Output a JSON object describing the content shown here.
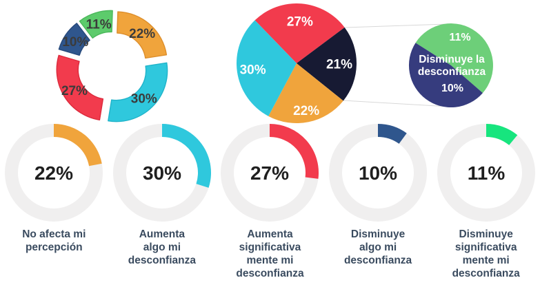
{
  "background": "#FFFFFF",
  "connector_color": "#D8D8D8",
  "chart_data": [
    {
      "id": "donut",
      "type": "pie",
      "variant": "exploded-donut",
      "legend_position": "none",
      "label_color": "#3B3B3B",
      "series": [
        {
          "category": "No afecta mi percepción",
          "value": 22,
          "label": "22%",
          "color": "#F0A43C",
          "stroke": "#DD8E2B"
        },
        {
          "category": "Aumenta algo mi desconfianza",
          "value": 30,
          "label": "30%",
          "color": "#2FC8DD",
          "stroke": "#1FB3C9"
        },
        {
          "category": "Aumenta significativamente mi desconfianza",
          "value": 27,
          "label": "27%",
          "color": "#F23B4D",
          "stroke": "#DC2A3C"
        },
        {
          "category": "Disminuye algo mi desconfianza",
          "value": 10,
          "label": "10%",
          "color": "#2F568D",
          "stroke": "#26497C"
        },
        {
          "category": "Disminuye significativamente mi desconfianza",
          "value": 11,
          "label": "11%",
          "color": "#5DCB6C",
          "stroke": "#4BB85B"
        }
      ]
    },
    {
      "id": "main-pie",
      "type": "pie",
      "variant": "pie-of-pie-main",
      "legend_position": "none",
      "label_color": "#FFFFFF",
      "series": [
        {
          "category": "Aumenta significativamente mi desconfianza",
          "value": 27,
          "label": "27%",
          "color": "#F23B4D"
        },
        {
          "category": "Disminuye la desconfianza (detalle)",
          "value": 21,
          "label": "21%",
          "color": "#171A33"
        },
        {
          "category": "No afecta mi percepción",
          "value": 22,
          "label": "22%",
          "color": "#F0A43C"
        },
        {
          "category": "Aumenta algo mi desconfianza",
          "value": 30,
          "label": "30%",
          "color": "#2FC8DD"
        }
      ]
    },
    {
      "id": "detail-pie",
      "type": "pie",
      "variant": "pie-of-pie-detail",
      "legend_position": "none",
      "label_color": "#FFFFFF",
      "center_label_lines": [
        "Disminuye la",
        "desconfianza"
      ],
      "series": [
        {
          "category": "Disminuye significativamente mi desconfianza",
          "value": 11,
          "label": "11%",
          "color": "#6DCF79"
        },
        {
          "category": "Disminuye algo mi desconfianza",
          "value": 10,
          "label": "10%",
          "color": "#363C7E"
        }
      ]
    },
    {
      "id": "gauges",
      "type": "pie",
      "variant": "gauge-ring-row",
      "track_color": "#F0EFEF",
      "percent_color": "#1F1F1F",
      "label_color": "#3A4B5F",
      "items": [
        {
          "value": 22,
          "percent_label": "22%",
          "color": "#F0A43C",
          "label_lines": [
            "No afecta mi",
            "percepción"
          ]
        },
        {
          "value": 30,
          "percent_label": "30%",
          "color": "#2FC8DD",
          "label_lines": [
            "Aumenta",
            "algo mi",
            "desconfianza"
          ]
        },
        {
          "value": 27,
          "percent_label": "27%",
          "color": "#F23B4D",
          "label_lines": [
            "Aumenta",
            "significativa",
            "mente mi",
            "desconfianza"
          ]
        },
        {
          "value": 10,
          "percent_label": "10%",
          "color": "#2F568D",
          "label_lines": [
            "Disminuye",
            "algo mi",
            "desconfianza"
          ]
        },
        {
          "value": 11,
          "percent_label": "11%",
          "color": "#17E57E",
          "label_lines": [
            "Disminuye",
            "significativa",
            "mente mi",
            "desconfianza"
          ]
        }
      ]
    }
  ]
}
